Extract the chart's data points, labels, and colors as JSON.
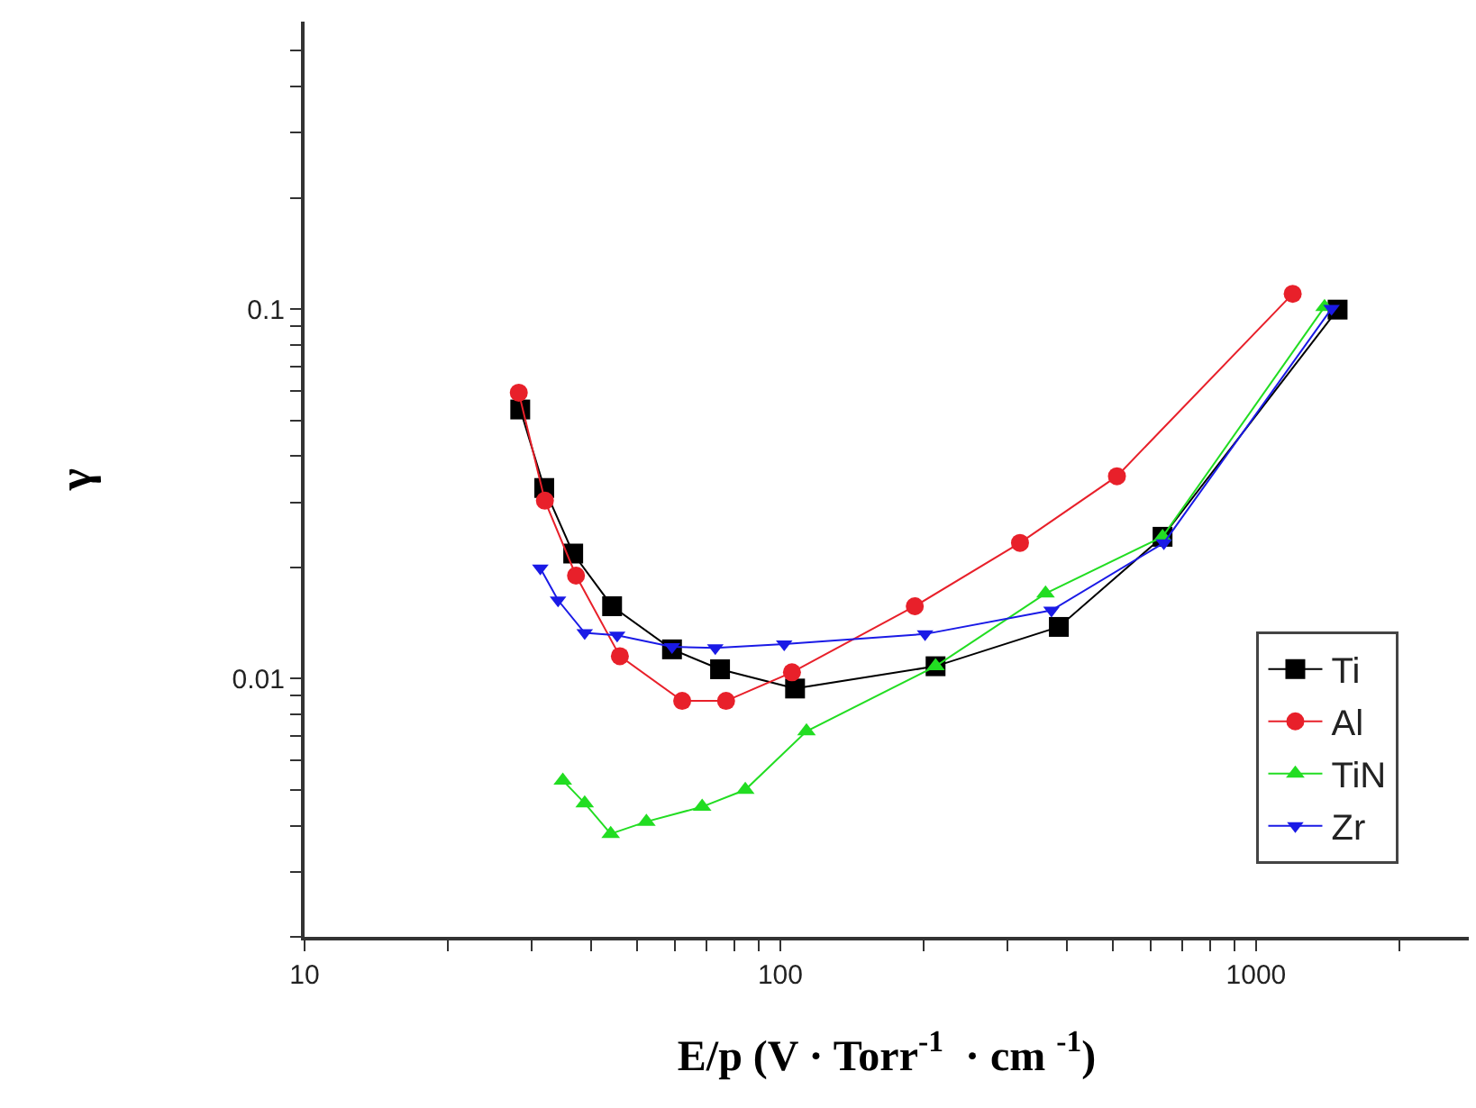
{
  "chart_data": {
    "type": "line",
    "xlabel": "E/p (V · Torr$^{-1}$  · cm $^{-1}$)",
    "ylabel": "γ",
    "log": "xy",
    "grid": false,
    "legend": "bottom right",
    "line_style": "solid",
    "xlim": [
      10,
      2800
    ],
    "ylim": [
      0.002,
      0.6
    ],
    "xticks": [
      10,
      {
        "value": 20,
        "label": null
      },
      {
        "value": 30,
        "label": null
      },
      {
        "value": 40,
        "label": null
      },
      {
        "value": 50,
        "label": null
      },
      {
        "value": 60,
        "label": null
      },
      {
        "value": 70,
        "label": null
      },
      {
        "value": 80,
        "label": null
      },
      {
        "value": 90,
        "label": null
      },
      100,
      {
        "value": 200,
        "label": null
      },
      {
        "value": 300,
        "label": null
      },
      {
        "value": 400,
        "label": null
      },
      {
        "value": 500,
        "label": null
      },
      {
        "value": 600,
        "label": null
      },
      {
        "value": 700,
        "label": null
      },
      {
        "value": 800,
        "label": null
      },
      {
        "value": 900,
        "label": null
      },
      1000,
      {
        "value": 2000,
        "label": null
      }
    ],
    "yticks": [
      {
        "value": 0.002,
        "label": null
      },
      {
        "value": 0.003,
        "label": null
      },
      {
        "value": 0.004,
        "label": null
      },
      {
        "value": 0.005,
        "label": null
      },
      {
        "value": 0.006,
        "label": null
      },
      {
        "value": 0.007,
        "label": null
      },
      {
        "value": 0.008,
        "label": null
      },
      {
        "value": 0.009,
        "label": null
      },
      0.01,
      {
        "value": 0.02,
        "label": null
      },
      {
        "value": 0.03,
        "label": null
      },
      {
        "value": 0.04,
        "label": null
      },
      {
        "value": 0.05,
        "label": null
      },
      {
        "value": 0.06,
        "label": null
      },
      {
        "value": 0.07,
        "label": null
      },
      {
        "value": 0.08,
        "label": null
      },
      {
        "value": 0.09,
        "label": null
      },
      0.1,
      {
        "value": 0.2,
        "label": null
      },
      {
        "value": 0.3,
        "label": null
      },
      {
        "value": 0.4,
        "label": null
      },
      {
        "value": 0.5,
        "label": null
      }
    ],
    "series": [
      {
        "name": "Ti",
        "color": "#000000",
        "marker": "square",
        "x": [
          28.4,
          31.9,
          36.7,
          44.3,
          59.2,
          74.7,
          107.4,
          212,
          385,
          636,
          1484
        ],
        "values": [
          0.0535,
          0.0328,
          0.0218,
          0.0157,
          0.012,
          0.0106,
          0.0094,
          0.0108,
          0.0138,
          0.0242,
          0.0997
        ]
      },
      {
        "name": "Al",
        "color": "#e8202a",
        "marker": "circle",
        "x": [
          28.2,
          32.0,
          37.2,
          46.0,
          62.2,
          76.9,
          105.8,
          191.7,
          319,
          510,
          1194
        ],
        "values": [
          0.0594,
          0.0303,
          0.019,
          0.0115,
          0.0087,
          0.0087,
          0.0104,
          0.0157,
          0.0233,
          0.0353,
          0.11
        ]
      },
      {
        "name": "TiN",
        "color": "#22dd22",
        "marker": "triangle",
        "x": [
          34.9,
          38.8,
          44.0,
          52.3,
          68.5,
          84.4,
          113.5,
          212,
          361,
          636,
          1393
        ],
        "values": [
          0.0053,
          0.0046,
          0.0038,
          0.0041,
          0.0045,
          0.005,
          0.0072,
          0.0108,
          0.017,
          0.0242,
          0.1014
        ]
      },
      {
        "name": "Zr",
        "color": "#1a1ae6",
        "marker": "triangle-down",
        "x": [
          31.3,
          34.1,
          38.8,
          45.4,
          59.2,
          73.0,
          101.9,
          201.5,
          371.5,
          640,
          1441
        ],
        "values": [
          0.0199,
          0.0163,
          0.0133,
          0.0131,
          0.0122,
          0.0121,
          0.0124,
          0.0132,
          0.0153,
          0.0233,
          0.1003
        ]
      }
    ]
  }
}
